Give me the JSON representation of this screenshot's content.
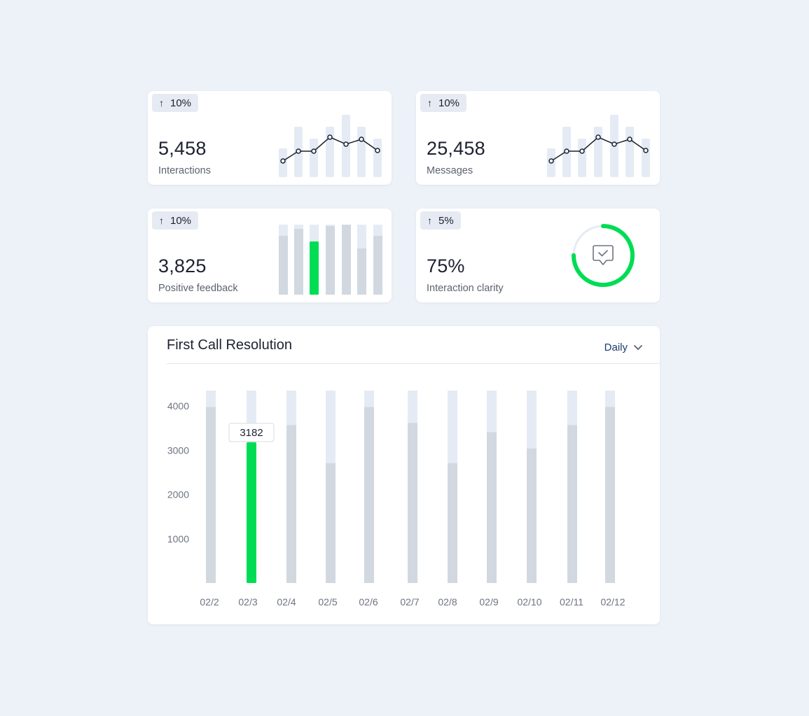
{
  "kpis": [
    {
      "change": "10%",
      "value": "5,458",
      "label": "Interactions"
    },
    {
      "change": "10%",
      "value": "25,458",
      "label": "Messages"
    },
    {
      "change": "10%",
      "value": "3,825",
      "label": "Positive feedback"
    },
    {
      "change": "5%",
      "value": "75%",
      "label": "Interaction clarity",
      "progress": 0.75
    }
  ],
  "colors": {
    "accent": "#00dd55",
    "bar_track": "#e5ebf4",
    "bar_fill": "#d2d8df",
    "background": "#edf1f8"
  },
  "main_chart": {
    "title": "First Call Resolution",
    "period": "Daily",
    "tooltip_value": "3182"
  },
  "chart_data": {
    "type": "bar",
    "title": "First Call Resolution",
    "xlabel": "",
    "ylabel": "",
    "categories": [
      "02/2",
      "02/3",
      "02/4",
      "02/5",
      "02/6",
      "02/7",
      "02/8",
      "02/9",
      "02/10",
      "02/11",
      "02/12"
    ],
    "values": [
      3980,
      3182,
      3570,
      2710,
      3980,
      3620,
      2710,
      3410,
      3040,
      3570,
      3980
    ],
    "yticks": [
      1000,
      2000,
      3000,
      4000
    ],
    "ylim": [
      0,
      4350
    ],
    "highlight_index": 1,
    "grid": false
  }
}
